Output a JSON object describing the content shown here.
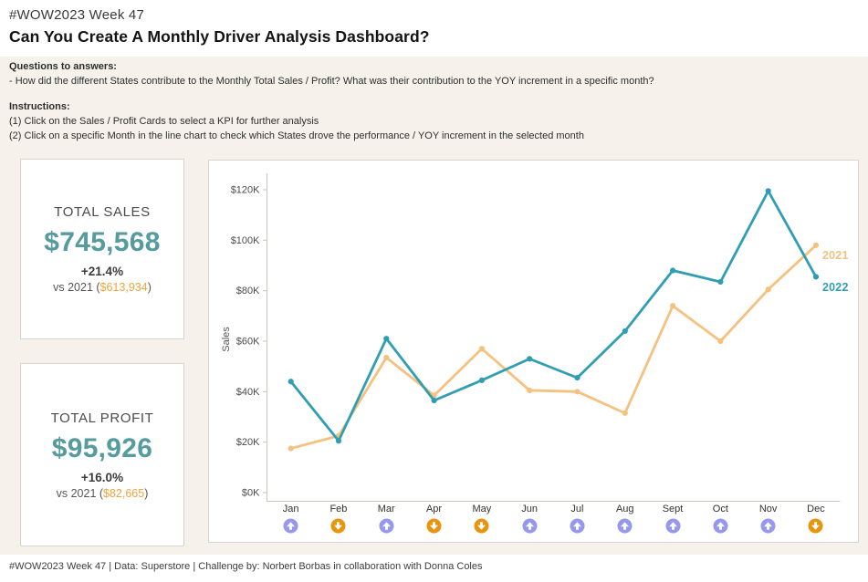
{
  "header": {
    "pretitle": "#WOW2023 Week 47",
    "title": "Can You Create A Monthly Driver Analysis Dashboard?"
  },
  "info": {
    "questions_heading": "Questions to answers:",
    "question": "- How did the different States contribute to the Monthly Total Sales / Profit? What was their contribution to the YOY increment in a specific month?",
    "instructions_heading": "Instructions:",
    "instruction1": "(1) Click on the Sales / Profit Cards to select a KPI for further analysis",
    "instruction2": "(2) Click on a specific Month in the line chart to check which States drove the performance / YOY increment in the selected month"
  },
  "kpi_cards": [
    {
      "title": "TOTAL SALES",
      "value": "$745,568",
      "delta": "+21.4%",
      "vs_prefix": "vs 2021 (",
      "vs_value": "$613,934",
      "vs_suffix": ")"
    },
    {
      "title": "TOTAL PROFIT",
      "value": "$95,926",
      "delta": "+16.0%",
      "vs_prefix": "vs 2021 (",
      "vs_value": "$82,665",
      "vs_suffix": ")"
    }
  ],
  "chart_data": {
    "type": "line",
    "title": "",
    "xlabel": "",
    "ylabel": "Sales",
    "y_unit": "USD thousands",
    "x": [
      "Jan",
      "Feb",
      "Mar",
      "Apr",
      "May",
      "Jun",
      "Jul",
      "Aug",
      "Sept",
      "Oct",
      "Nov",
      "Dec"
    ],
    "y_tick_labels": [
      "$0K",
      "$20K",
      "$40K",
      "$60K",
      "$80K",
      "$100K",
      "$120K"
    ],
    "y_tick_values": [
      0,
      20,
      40,
      60,
      80,
      100,
      120
    ],
    "ylim": [
      0,
      126
    ],
    "grid": false,
    "legend_position": "right end of lines",
    "series": [
      {
        "name": "2021",
        "color": "#f5c180",
        "values": [
          17.5,
          22.5,
          53.5,
          38.5,
          57,
          40.5,
          40,
          31.5,
          74,
          60,
          80.5,
          98
        ]
      },
      {
        "name": "2022",
        "color": "#2f9eb3",
        "values": [
          44,
          20.5,
          61,
          36.5,
          44.5,
          53,
          45.5,
          64,
          88,
          83.5,
          119.5,
          85.5
        ]
      }
    ],
    "yoy_arrows": [
      "up",
      "down",
      "up",
      "down",
      "down",
      "up",
      "up",
      "up",
      "up",
      "up",
      "up",
      "down"
    ],
    "arrow_up_color": "#9598ec",
    "arrow_down_color": "#e8940d",
    "axis_color": "#c9c5bf",
    "tick_label_color": "#4a4a4a"
  },
  "footer": {
    "text": "#WOW2023 Week 47 | Data: Superstore | Challenge by: Norbert Borbas in collaboration with Donna Coles"
  }
}
